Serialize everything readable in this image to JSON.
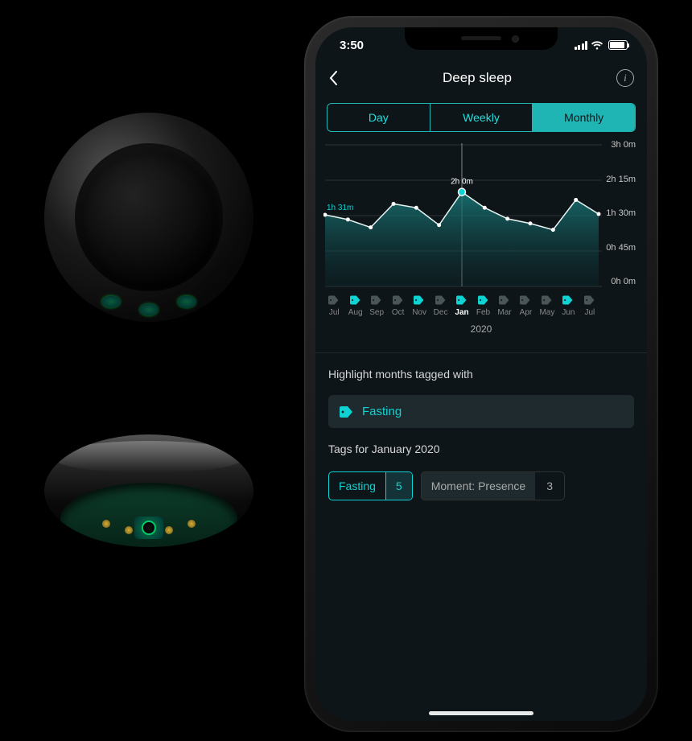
{
  "status_bar": {
    "time": "3:50"
  },
  "nav": {
    "title": "Deep sleep"
  },
  "tabs": {
    "items": [
      "Day",
      "Weekly",
      "Monthly"
    ],
    "active_index": 2
  },
  "chart": {
    "type": "area-line",
    "background_color": "#0d1518",
    "grid_color": "#2a3438",
    "line_color": "#e8f4f4",
    "area_top_color": "#1a7a7a",
    "area_bottom_color": "#0d2a2e",
    "highlight_color": "#0dd3d3",
    "y_axis": {
      "labels": [
        "3h 0m",
        "2h 15m",
        "1h 30m",
        "0h 45m",
        "0h 0m"
      ],
      "max_minutes": 180,
      "step_minutes": 45,
      "font_color": "#c8c8c8",
      "font_size": 11
    },
    "x_axis": {
      "months": [
        "Jul",
        "Aug",
        "Sep",
        "Oct",
        "Nov",
        "Dec",
        "Jan",
        "Feb",
        "Mar",
        "Apr",
        "May",
        "Jun",
        "Jul"
      ],
      "tagged": [
        false,
        true,
        false,
        false,
        true,
        false,
        true,
        true,
        false,
        false,
        false,
        true,
        false
      ],
      "year_label": "2020",
      "font_color": "#888888",
      "font_size": 10
    },
    "series_minutes": [
      91,
      85,
      75,
      105,
      100,
      78,
      120,
      100,
      86,
      80,
      72,
      110,
      92
    ],
    "selected_index": 6,
    "selected_label": "2h 0m",
    "start_label": "1h 31m"
  },
  "highlight_section": {
    "title": "Highlight months tagged with",
    "tag": "Fasting",
    "tag_color": "#0dd3d3",
    "row_bg": "#1e2a2e"
  },
  "tags_section": {
    "title": "Tags for January 2020",
    "tags": [
      {
        "label": "Fasting",
        "count": 5,
        "selected": true
      },
      {
        "label": "Moment: Presence",
        "count": 3,
        "selected": false
      }
    ]
  },
  "colors": {
    "accent": "#1fb5b5",
    "accent_bright": "#0dd3d3",
    "screen_bg": "#0d1518",
    "panel_bg": "#1e2a2e",
    "text_primary": "#ffffff",
    "text_muted": "#888888"
  }
}
